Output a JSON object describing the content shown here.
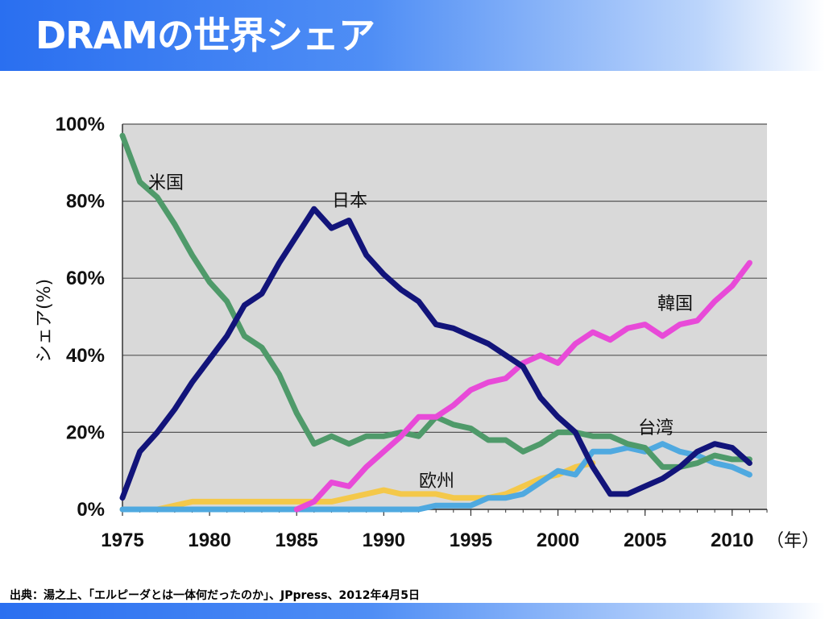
{
  "page": {
    "title": "DRAMの世界シェア",
    "source": "出典：湯之上、「エルピーダとは一体何だったのか」、JPpress、2012年4月5日"
  },
  "chart_data": {
    "type": "line",
    "title": "",
    "xlabel": "（年）",
    "ylabel": "シェア(%)",
    "xlim": [
      1975,
      2012
    ],
    "ylim": [
      0,
      100
    ],
    "x_ticks": [
      "1975",
      "1980",
      "1985",
      "1990",
      "1995",
      "2000",
      "2005",
      "2010"
    ],
    "y_ticks": [
      "0%",
      "20%",
      "40%",
      "60%",
      "80%",
      "100%"
    ],
    "grid": true,
    "colors": {
      "plot_bg": "#d9d9d9"
    },
    "series": [
      {
        "name": "米国",
        "color": "#4f9a6a",
        "x": [
          1975,
          1976,
          1977,
          1978,
          1979,
          1980,
          1981,
          1982,
          1983,
          1984,
          1985,
          1986,
          1987,
          1988,
          1989,
          1990,
          1991,
          1992,
          1993,
          1994,
          1995,
          1996,
          1997,
          1998,
          1999,
          2000,
          2001,
          2002,
          2003,
          2004,
          2005,
          2006,
          2007,
          2008,
          2009,
          2010,
          2011
        ],
        "values": [
          97,
          85,
          81,
          74,
          66,
          59,
          54,
          45,
          42,
          35,
          25,
          17,
          19,
          17,
          19,
          19,
          20,
          19,
          24,
          22,
          21,
          18,
          18,
          15,
          17,
          20,
          20,
          19,
          19,
          17,
          16,
          11,
          11,
          12,
          14,
          13,
          13
        ]
      },
      {
        "name": "日本",
        "color": "#12147a",
        "x": [
          1975,
          1976,
          1977,
          1978,
          1979,
          1980,
          1981,
          1982,
          1983,
          1984,
          1985,
          1986,
          1987,
          1988,
          1989,
          1990,
          1991,
          1992,
          1993,
          1994,
          1995,
          1996,
          1997,
          1998,
          1999,
          2000,
          2001,
          2002,
          2003,
          2004,
          2005,
          2006,
          2007,
          2008,
          2009,
          2010,
          2011
        ],
        "values": [
          3,
          15,
          20,
          26,
          33,
          39,
          45,
          53,
          56,
          64,
          71,
          78,
          73,
          75,
          66,
          61,
          57,
          54,
          48,
          47,
          45,
          43,
          40,
          37,
          29,
          24,
          20,
          11,
          4,
          4,
          6,
          8,
          11,
          15,
          17,
          16,
          12
        ]
      },
      {
        "name": "韓国",
        "color": "#e84ad8",
        "x": [
          1985,
          1986,
          1987,
          1988,
          1989,
          1990,
          1991,
          1992,
          1993,
          1994,
          1995,
          1996,
          1997,
          1998,
          1999,
          2000,
          2001,
          2002,
          2003,
          2004,
          2005,
          2006,
          2007,
          2008,
          2009,
          2010,
          2011
        ],
        "values": [
          0,
          2,
          7,
          6,
          11,
          15,
          19,
          24,
          24,
          27,
          31,
          33,
          34,
          38,
          40,
          38,
          43,
          46,
          44,
          47,
          48,
          45,
          48,
          49,
          54,
          58,
          64
        ]
      },
      {
        "name": "欧州",
        "color": "#f4c84a",
        "x": [
          1975,
          1976,
          1977,
          1978,
          1979,
          1980,
          1981,
          1982,
          1983,
          1984,
          1985,
          1986,
          1987,
          1988,
          1989,
          1990,
          1991,
          1992,
          1993,
          1994,
          1995,
          1996,
          1997,
          1998,
          1999,
          2000,
          2001,
          2002
        ],
        "values": [
          0,
          0,
          0,
          1,
          2,
          2,
          2,
          2,
          2,
          2,
          2,
          2,
          2,
          3,
          4,
          5,
          4,
          4,
          4,
          3,
          3,
          3,
          4,
          6,
          8,
          9,
          11,
          12
        ]
      },
      {
        "name": "台湾",
        "color": "#4fa9e0",
        "x": [
          1975,
          1980,
          1985,
          1990,
          1992,
          1993,
          1994,
          1995,
          1996,
          1997,
          1998,
          1999,
          2000,
          2001,
          2002,
          2003,
          2004,
          2005,
          2006,
          2007,
          2008,
          2009,
          2010,
          2011
        ],
        "values": [
          0,
          0,
          0,
          0,
          0,
          1,
          1,
          1,
          3,
          3,
          4,
          7,
          10,
          9,
          15,
          15,
          16,
          15,
          17,
          15,
          14,
          12,
          11,
          9
        ]
      }
    ],
    "annotations": [
      {
        "text": "米国",
        "series": "米国"
      },
      {
        "text": "日本",
        "series": "日本"
      },
      {
        "text": "韓国",
        "series": "韓国"
      },
      {
        "text": "台湾",
        "series": "台湾"
      },
      {
        "text": "欧州",
        "series": "欧州"
      }
    ]
  }
}
